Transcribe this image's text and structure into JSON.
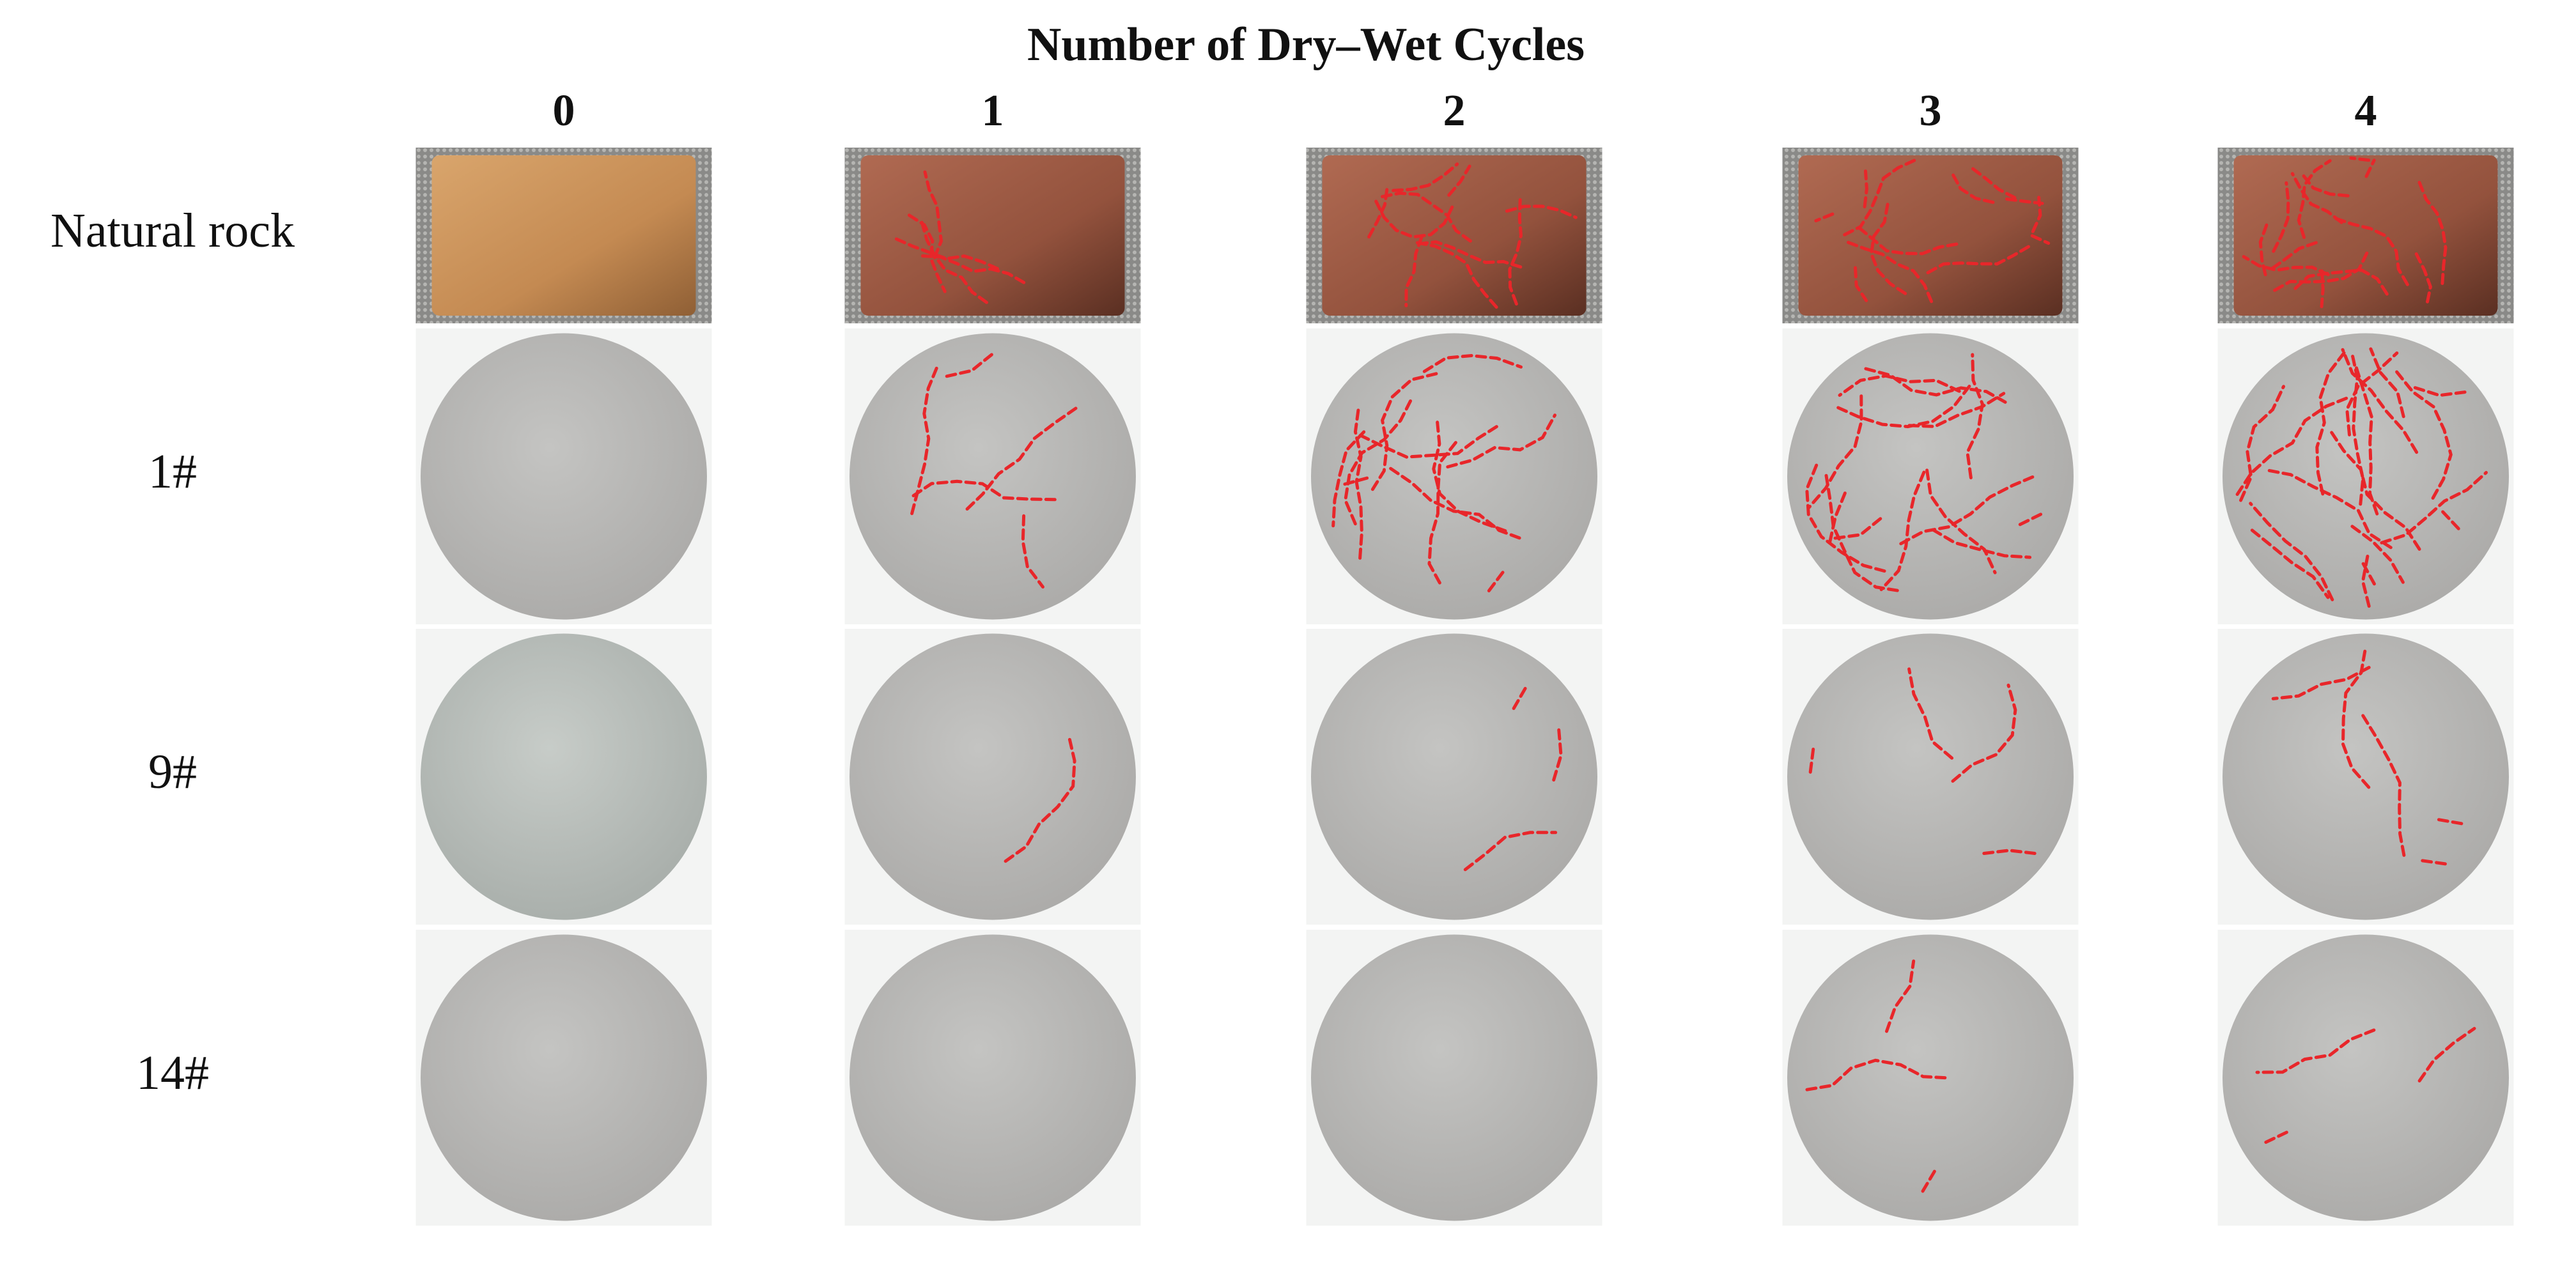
{
  "title": "Number of Dry–Wet Cycles",
  "columns": [
    "0",
    "1",
    "2",
    "3",
    "4"
  ],
  "rows": [
    "Natural rock",
    "1#",
    "9#",
    "14#"
  ]
}
